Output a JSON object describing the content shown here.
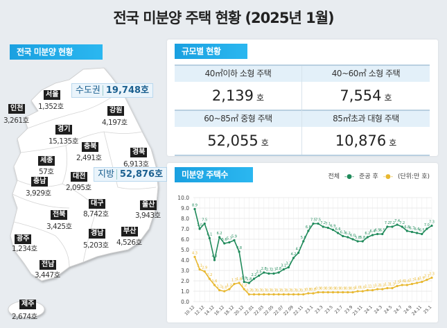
{
  "title": "전국 미분양 주택 현황  (2025년 1월)",
  "map": {
    "badge": "전국 미분양 현황",
    "capital_area": {
      "label": "수도권",
      "value": "19,748호"
    },
    "provinces_total": {
      "label": "지방",
      "value": "52,876호"
    },
    "regions": [
      {
        "name": "서울",
        "value": "1,352호"
      },
      {
        "name": "인천",
        "value": "3,261호"
      },
      {
        "name": "강원",
        "value": "4,197호"
      },
      {
        "name": "경기",
        "value": "15,135호"
      },
      {
        "name": "충북",
        "value": "2,491호"
      },
      {
        "name": "경북",
        "value": "6,913호"
      },
      {
        "name": "세종",
        "value": "57호"
      },
      {
        "name": "충남",
        "value": "3,929호"
      },
      {
        "name": "대전",
        "value": "2,095호"
      },
      {
        "name": "대구",
        "value": "8,742호"
      },
      {
        "name": "울산",
        "value": "3,943호"
      },
      {
        "name": "전북",
        "value": "3,425호"
      },
      {
        "name": "광주",
        "value": "1,234호"
      },
      {
        "name": "경남",
        "value": "5,203호"
      },
      {
        "name": "부산",
        "value": "4,526호"
      },
      {
        "name": "전남",
        "value": "3,447호"
      },
      {
        "name": "제주",
        "value": "2,674호"
      }
    ]
  },
  "size": {
    "badge": "규모별 현황",
    "unit": "호",
    "items": [
      {
        "label": "40㎡이하 소형 주택",
        "value": "2,139"
      },
      {
        "label": "40~60㎡ 소형 주택",
        "value": "7,554"
      },
      {
        "label": "60~85㎡ 중형 주택",
        "value": "52,055"
      },
      {
        "label": "85㎡초과 대형 주택",
        "value": "10,876"
      }
    ]
  },
  "chart_data": {
    "type": "line",
    "badge": "미분양 주택수",
    "unit_note": "(단위:만 호)",
    "ylim": [
      0,
      10
    ],
    "yticks": [
      "0.0",
      "1.0",
      "2.0",
      "3.0",
      "4.0",
      "5.0",
      "6.0",
      "7.0",
      "8.0",
      "9.0",
      "10.0"
    ],
    "grid": true,
    "legend_position": "top-right",
    "x": [
      "10.12",
      "11.12",
      "12.12",
      "13.12",
      "14.12",
      "15.12",
      "16.12",
      "17.12",
      "18.12",
      "19.12",
      "20.12",
      "21.12",
      "22.01",
      "22.02",
      "22.03",
      "22.04",
      "22.05",
      "22.06",
      "22.07",
      "22.08",
      "22.09",
      "22.10",
      "22.11",
      "22.12",
      "23.1",
      "23.2",
      "23.3",
      "23.4",
      "23.5",
      "23.6",
      "23.7",
      "23.8",
      "23.9",
      "23.10",
      "23.11",
      "23.12",
      "24.1",
      "24.2",
      "24.3",
      "24.4",
      "24.5",
      "24.6",
      "24.7",
      "24.8",
      "24.9",
      "24.10",
      "24.11",
      "24.12",
      "25.1"
    ],
    "xtick_labels": [
      "10.12",
      "12.12",
      "14.12",
      "16.12",
      "18.12",
      "20.12",
      "22.01",
      "22.03",
      "22.05",
      "22.07",
      "22.09",
      "22.11",
      "23.1",
      "23.3",
      "23.5",
      "23.7",
      "23.9",
      "23.11",
      "24.1",
      "24.3",
      "24.5",
      "24.7",
      "24.9",
      "24.11",
      "25.1"
    ],
    "series": [
      {
        "name": "전체",
        "color": "#1f8a5a",
        "values": [
          8.9,
          7.0,
          7.5,
          6.1,
          4.0,
          6.2,
          5.6,
          5.7,
          5.9,
          4.8,
          1.9,
          1.8,
          2.2,
          2.5,
          2.8,
          2.7,
          2.7,
          2.8,
          3.1,
          3.3,
          4.2,
          4.7,
          5.8,
          6.8,
          7.5,
          7.5,
          7.2,
          7.1,
          6.9,
          6.6,
          6.3,
          6.2,
          6.0,
          5.8,
          5.8,
          6.2,
          6.4,
          6.5,
          6.5,
          7.2,
          7.2,
          7.4,
          7.2,
          6.8,
          6.7,
          6.6,
          6.5,
          7.0,
          7.3
        ]
      },
      {
        "name": "준공 후",
        "color": "#e8b830",
        "values": [
          4.3,
          3.1,
          2.9,
          2.2,
          1.6,
          1.1,
          1.0,
          1.2,
          1.7,
          1.8,
          1.2,
          0.7,
          0.7,
          0.7,
          0.7,
          0.7,
          0.7,
          0.7,
          0.7,
          0.7,
          0.7,
          0.7,
          0.7,
          0.8,
          0.8,
          0.9,
          0.9,
          0.9,
          0.9,
          0.9,
          0.9,
          0.9,
          0.9,
          1.0,
          1.0,
          1.1,
          1.1,
          1.2,
          1.2,
          1.3,
          1.3,
          1.5,
          1.6,
          1.6,
          1.7,
          1.8,
          1.9,
          2.1,
          2.3
        ]
      }
    ]
  }
}
